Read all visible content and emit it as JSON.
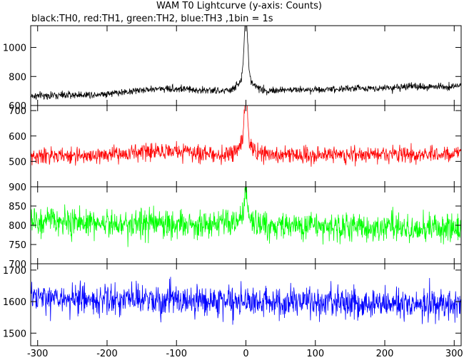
{
  "chart_data": {
    "title": "WAM T0 Lightcurve (y-axis: Counts)",
    "subtitle": "black:TH0, red:TH1, green:TH2, blue:TH3 ,1bin = 1s",
    "type": "line",
    "xlim": [
      -310,
      310
    ],
    "xticks": [
      -300,
      -200,
      -100,
      0,
      100,
      200,
      300
    ],
    "xtick_labels": [
      "-300",
      "-200",
      "-100",
      "0",
      "100",
      "200",
      "300"
    ],
    "grid": false,
    "legend": "none",
    "panels": [
      {
        "series": "TH0",
        "color": "#000000",
        "ylim": [
          600,
          1150
        ],
        "yticks": [
          600,
          800,
          1000
        ],
        "ytick_labels": [
          "600",
          "800",
          "1000"
        ],
        "baseline_start": 665,
        "baseline_end": 735,
        "noise": 22,
        "peak": 1130,
        "peak_width_s": 3.5,
        "shoulder": 90,
        "shoulder_width_s": 14,
        "bump": 30
      },
      {
        "series": "TH1",
        "color": "#ff0000",
        "ylim": [
          400,
          720
        ],
        "yticks": [
          500,
          600,
          700
        ],
        "ytick_labels": [
          "500",
          "600",
          "700"
        ],
        "baseline_start": 520,
        "baseline_end": 530,
        "noise": 28,
        "peak": 710,
        "peak_width_s": 3,
        "shoulder": 60,
        "shoulder_width_s": 12,
        "bump": 18
      },
      {
        "series": "TH2",
        "color": "#00ff00",
        "ylim": [
          700,
          900
        ],
        "yticks": [
          700,
          750,
          800,
          850,
          900
        ],
        "ytick_labels": [
          "700",
          "750",
          "800",
          "850",
          "900"
        ],
        "baseline_start": 810,
        "baseline_end": 790,
        "noise": 32,
        "peak": 870,
        "peak_width_s": 4,
        "shoulder": 10,
        "shoulder_width_s": 20,
        "bump": 0
      },
      {
        "series": "TH3",
        "color": "#0000ff",
        "ylim": [
          1460,
          1720
        ],
        "yticks": [
          1500,
          1600,
          1700
        ],
        "ytick_labels": [
          "1500",
          "1600",
          "1700"
        ],
        "baseline_start": 1610,
        "baseline_end": 1590,
        "noise": 42,
        "peak": 1610,
        "peak_width_s": 4,
        "shoulder": 0,
        "shoulder_width_s": 20,
        "bump": 0
      }
    ]
  }
}
